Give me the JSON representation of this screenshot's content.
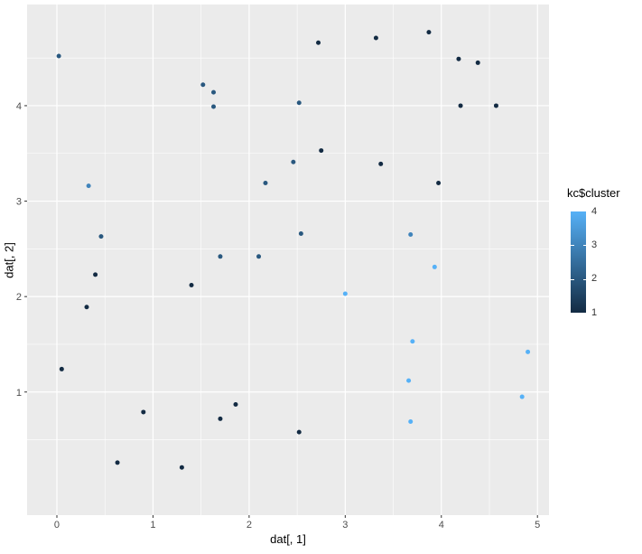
{
  "colors": {
    "panel_bg": "#EBEBEB",
    "grid": "#FFFFFF",
    "tick_text": "#4D4D4D",
    "axis_title_text": "#000000",
    "tick_mark": "#333333",
    "outer_bg": "#FFFFFF"
  },
  "chart_data": {
    "type": "scatter",
    "title": "",
    "xlabel": "dat[, 1]",
    "ylabel": "dat[, 2]",
    "xlim": [
      -0.31,
      5.12
    ],
    "ylim": [
      -0.29,
      5.06
    ],
    "x_ticks": [
      0,
      1,
      2,
      3,
      4,
      5
    ],
    "y_ticks": [
      1,
      2,
      3,
      4
    ],
    "x_minor": [
      0.5,
      1.5,
      2.5,
      3.5,
      4.5
    ],
    "y_minor": [
      0.5,
      1.5,
      2.5,
      3.5,
      4.5
    ],
    "grid": true,
    "legend": {
      "title": "kc$cluster",
      "position": "right",
      "ticks": [
        4,
        3,
        2,
        1
      ],
      "range": [
        1,
        4
      ],
      "low_color": "#132B43",
      "high_color": "#56B1F7"
    },
    "cluster_colors": {
      "1": "#132B43",
      "2": "#29587F",
      "3": "#4084BB",
      "4": "#56B1F7"
    },
    "points": [
      {
        "x": 0.02,
        "y": 4.52,
        "cluster": 2
      },
      {
        "x": 0.33,
        "y": 3.16,
        "cluster": 3
      },
      {
        "x": 0.46,
        "y": 2.63,
        "cluster": 2
      },
      {
        "x": 0.4,
        "y": 2.23,
        "cluster": 1
      },
      {
        "x": 0.31,
        "y": 1.89,
        "cluster": 1
      },
      {
        "x": 0.05,
        "y": 1.24,
        "cluster": 1
      },
      {
        "x": 0.63,
        "y": 0.26,
        "cluster": 1
      },
      {
        "x": 0.9,
        "y": 0.79,
        "cluster": 1
      },
      {
        "x": 1.3,
        "y": 0.21,
        "cluster": 1
      },
      {
        "x": 1.4,
        "y": 2.12,
        "cluster": 1
      },
      {
        "x": 1.52,
        "y": 4.22,
        "cluster": 2
      },
      {
        "x": 1.63,
        "y": 4.14,
        "cluster": 2
      },
      {
        "x": 1.63,
        "y": 3.99,
        "cluster": 2
      },
      {
        "x": 1.7,
        "y": 2.42,
        "cluster": 2
      },
      {
        "x": 1.7,
        "y": 0.72,
        "cluster": 1
      },
      {
        "x": 1.86,
        "y": 0.87,
        "cluster": 1
      },
      {
        "x": 2.1,
        "y": 2.42,
        "cluster": 2
      },
      {
        "x": 2.17,
        "y": 3.19,
        "cluster": 2
      },
      {
        "x": 2.46,
        "y": 3.41,
        "cluster": 2
      },
      {
        "x": 2.52,
        "y": 4.03,
        "cluster": 2
      },
      {
        "x": 2.54,
        "y": 2.66,
        "cluster": 2
      },
      {
        "x": 2.52,
        "y": 0.58,
        "cluster": 1
      },
      {
        "x": 2.72,
        "y": 4.66,
        "cluster": 1
      },
      {
        "x": 2.75,
        "y": 3.53,
        "cluster": 1
      },
      {
        "x": 3.0,
        "y": 2.03,
        "cluster": 4
      },
      {
        "x": 3.32,
        "y": 4.71,
        "cluster": 1
      },
      {
        "x": 3.37,
        "y": 3.39,
        "cluster": 1
      },
      {
        "x": 3.68,
        "y": 2.65,
        "cluster": 3
      },
      {
        "x": 3.7,
        "y": 1.53,
        "cluster": 4
      },
      {
        "x": 3.66,
        "y": 1.12,
        "cluster": 4
      },
      {
        "x": 3.68,
        "y": 0.69,
        "cluster": 4
      },
      {
        "x": 3.87,
        "y": 4.77,
        "cluster": 1
      },
      {
        "x": 3.93,
        "y": 2.31,
        "cluster": 4
      },
      {
        "x": 3.97,
        "y": 3.19,
        "cluster": 1
      },
      {
        "x": 4.18,
        "y": 4.49,
        "cluster": 1
      },
      {
        "x": 4.2,
        "y": 4.0,
        "cluster": 1
      },
      {
        "x": 4.38,
        "y": 4.45,
        "cluster": 1
      },
      {
        "x": 4.57,
        "y": 4.0,
        "cluster": 1
      },
      {
        "x": 4.9,
        "y": 1.42,
        "cluster": 4
      },
      {
        "x": 4.84,
        "y": 0.95,
        "cluster": 4
      }
    ]
  }
}
